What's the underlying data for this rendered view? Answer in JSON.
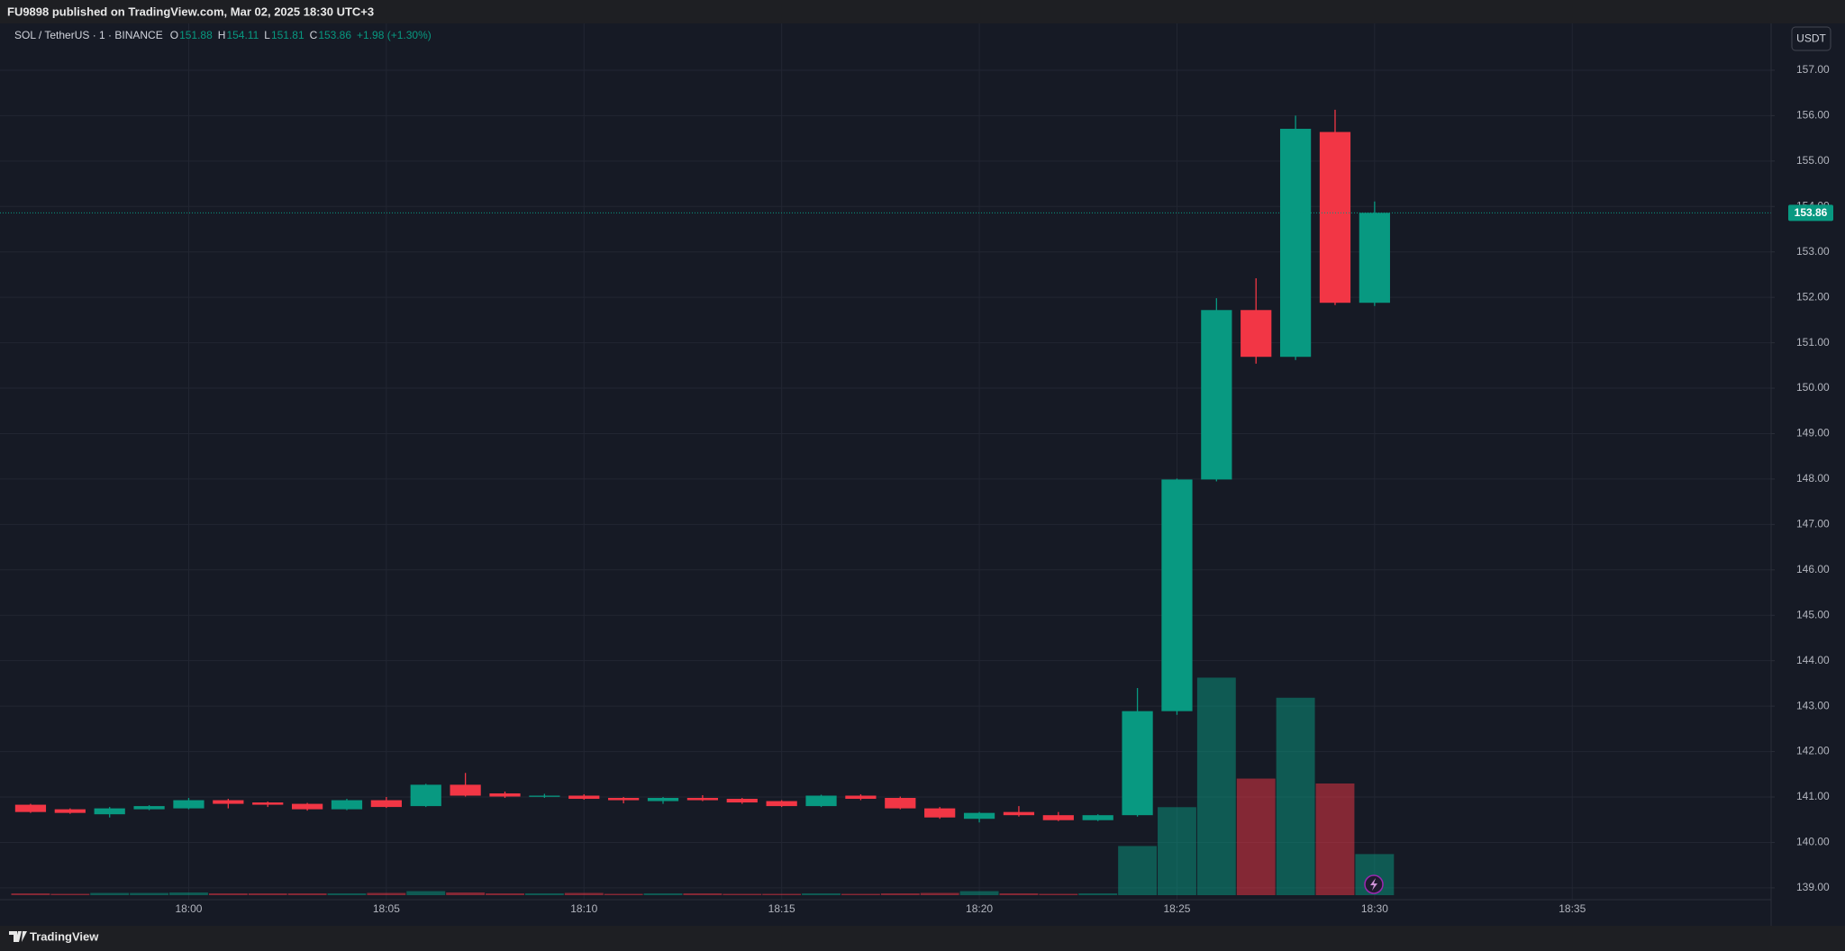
{
  "chart_data": {
    "type": "candlestick",
    "published": "FU9898 published on TradingView.com, Mar 02, 2025 18:30 UTC+3",
    "symbol": "SOL / TetherUS · 1 · BINANCE",
    "ohlc_labels": [
      "O",
      "H",
      "L",
      "C"
    ],
    "change": "+1.98 (+1.30%)",
    "currency": "USDT",
    "brand": "TradingView",
    "up_color": "#089981",
    "down_color": "#f23645",
    "grid": true,
    "categories": [
      null,
      null,
      null,
      null,
      "18:00",
      null,
      null,
      null,
      null,
      "18:05",
      null,
      null,
      null,
      null,
      "18:10",
      null,
      null,
      null,
      null,
      "18:15",
      null,
      null,
      null,
      null,
      "18:20",
      null,
      null,
      null,
      null,
      "18:25",
      null,
      null,
      null,
      null,
      "18:30",
      null,
      null,
      null,
      null,
      "18:35",
      null,
      null,
      null,
      null
    ],
    "open": [
      140.83,
      140.73,
      140.62,
      140.73,
      140.75,
      140.93,
      140.88,
      140.85,
      140.73,
      140.93,
      140.8,
      141.27,
      141.08,
      141.03,
      141.03,
      140.98,
      140.91,
      140.98,
      140.96,
      140.91,
      140.8,
      141.03,
      140.98,
      140.75,
      140.52,
      140.67,
      140.6,
      140.49,
      140.6,
      142.89,
      147.99,
      151.72,
      150.69,
      155.64,
      151.88,
      null,
      null,
      null,
      null,
      null,
      null,
      null,
      null,
      null
    ],
    "high": [
      140.85,
      140.75,
      140.78,
      140.82,
      140.98,
      140.96,
      140.9,
      140.87,
      140.96,
      141.0,
      141.29,
      141.53,
      141.12,
      141.07,
      141.06,
      141.0,
      141.0,
      141.04,
      140.98,
      140.93,
      141.05,
      141.06,
      141.01,
      140.78,
      140.67,
      140.8,
      140.67,
      140.62,
      143.4,
      148.01,
      151.98,
      152.42,
      156.0,
      156.13,
      154.11,
      null,
      null,
      null,
      null,
      null,
      null,
      null,
      null,
      null
    ],
    "low": [
      140.65,
      140.63,
      140.55,
      140.71,
      140.73,
      140.75,
      140.78,
      140.7,
      140.71,
      140.76,
      140.78,
      141.01,
      140.98,
      140.98,
      140.94,
      140.86,
      140.85,
      140.91,
      140.85,
      140.78,
      140.78,
      140.93,
      140.73,
      140.52,
      140.44,
      140.57,
      140.47,
      140.47,
      140.57,
      142.81,
      147.95,
      150.54,
      150.62,
      151.83,
      151.81,
      null,
      null,
      null,
      null,
      null,
      null,
      null,
      null,
      null
    ],
    "close": [
      140.67,
      140.65,
      140.75,
      140.8,
      140.93,
      140.85,
      140.83,
      140.73,
      140.93,
      140.78,
      141.27,
      141.03,
      141.01,
      141.03,
      140.96,
      140.93,
      140.98,
      140.93,
      140.88,
      140.8,
      141.03,
      140.96,
      140.75,
      140.55,
      140.65,
      140.6,
      140.49,
      140.6,
      142.89,
      147.99,
      151.72,
      150.69,
      155.71,
      151.88,
      153.86,
      null,
      null,
      null,
      null,
      null,
      null,
      null,
      null,
      null
    ],
    "volume": [
      4,
      3,
      5,
      5,
      6,
      4,
      4,
      4,
      4,
      5,
      9,
      6,
      4,
      4,
      5,
      3,
      4,
      4,
      3,
      3,
      4,
      3,
      4,
      5,
      9,
      4,
      3,
      4,
      110,
      197,
      487,
      261,
      442,
      250,
      92,
      null,
      null,
      null,
      null,
      null,
      null,
      null,
      null,
      null
    ],
    "volume_ylim": [
      0,
      1000
    ],
    "ylim": [
      138.74,
      158.03
    ],
    "yticks": [
      {
        "value": 139,
        "label": "139.00"
      },
      {
        "value": 140,
        "label": "140.00"
      },
      {
        "value": 141,
        "label": "141.00"
      },
      {
        "value": 142,
        "label": "142.00"
      },
      {
        "value": 143,
        "label": "143.00"
      },
      {
        "value": 144,
        "label": "144.00"
      },
      {
        "value": 145,
        "label": "145.00"
      },
      {
        "value": 146,
        "label": "146.00"
      },
      {
        "value": 147,
        "label": "147.00"
      },
      {
        "value": 148,
        "label": "148.00"
      },
      {
        "value": 149,
        "label": "149.00"
      },
      {
        "value": 150,
        "label": "150.00"
      },
      {
        "value": 151,
        "label": "151.00"
      },
      {
        "value": 152,
        "label": "152.00"
      },
      {
        "value": 153,
        "label": "153.00"
      },
      {
        "value": 154,
        "label": "154.00"
      },
      {
        "value": 155,
        "label": "155.00"
      },
      {
        "value": 156,
        "label": "156.00"
      },
      {
        "value": 157,
        "label": "157.00"
      }
    ]
  }
}
